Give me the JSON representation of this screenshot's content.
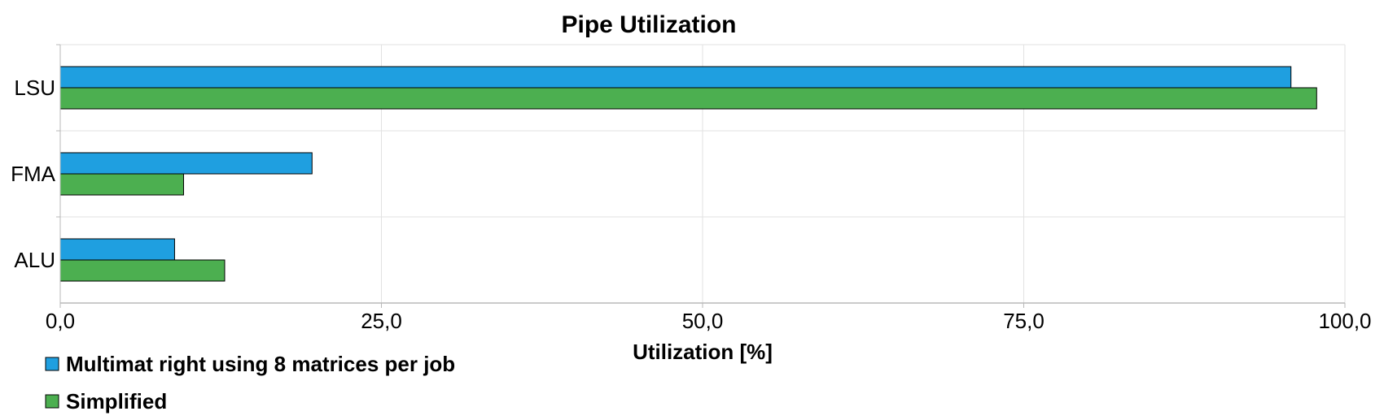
{
  "chart_data": {
    "type": "bar",
    "orientation": "horizontal",
    "title": "Pipe Utilization",
    "xlabel": "Utilization [%]",
    "ylabel": "",
    "categories": [
      "LSU",
      "FMA",
      "ALU"
    ],
    "xlim": [
      0,
      100
    ],
    "x_ticks": [
      "0,0",
      "25,0",
      "50,0",
      "75,0",
      "100,0"
    ],
    "x_tick_values": [
      0,
      25,
      50,
      75,
      100
    ],
    "grid": true,
    "legend_position": "bottom-left",
    "series": [
      {
        "name": "Multimat right using 8 matrices per job",
        "color": "#1f9fe0",
        "values": [
          95.8,
          19.6,
          8.9
        ]
      },
      {
        "name": "Simplified",
        "color": "#4caf50",
        "values": [
          97.8,
          9.6,
          12.8
        ]
      }
    ]
  }
}
